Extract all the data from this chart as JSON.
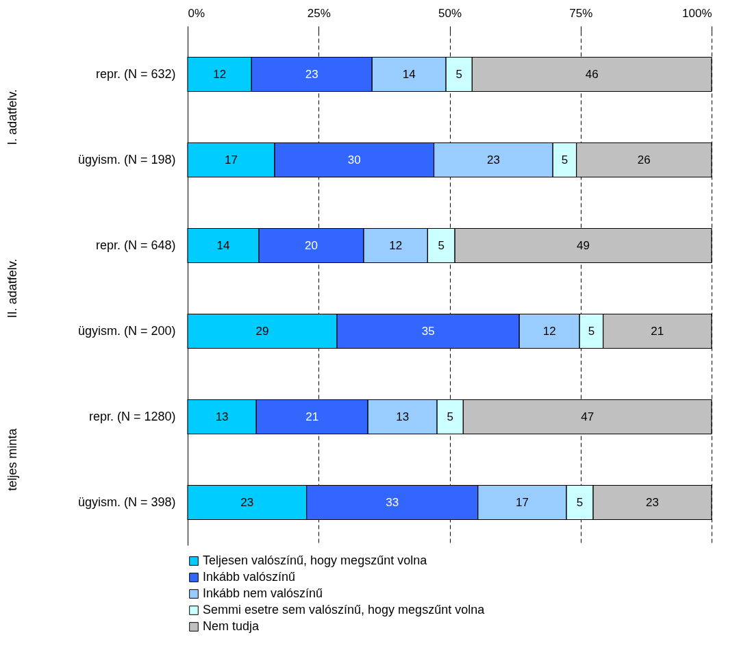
{
  "chart_data": {
    "type": "bar",
    "orientation": "horizontal",
    "stacked": true,
    "categories": [
      "repr. (N = 632)",
      "ügyism. (N = 198)",
      "repr. (N = 648)",
      "ügyism. (N = 200)",
      "repr. (N = 1280)",
      "ügyism. (N = 398)"
    ],
    "series": [
      {
        "name": "Teljesen valószínű, hogy megszűnt volna",
        "color": "#00ccff",
        "values": [
          12.2,
          16.6,
          13.6,
          28.5,
          13.1,
          22.7
        ],
        "value_labels": [
          "12",
          "17",
          "14",
          "29",
          "13",
          "23"
        ]
      },
      {
        "name": "Inkább valószínű",
        "color": "#3366ff",
        "values": [
          23.0,
          30.4,
          20.0,
          34.8,
          21.3,
          32.7
        ],
        "value_labels": [
          "23",
          "30",
          "20",
          "35",
          "21",
          "33"
        ]
      },
      {
        "name": "Inkább nem valószínű",
        "color": "#99ccff",
        "values": [
          14.1,
          22.7,
          12.2,
          11.5,
          13.2,
          16.9
        ],
        "value_labels": [
          "14",
          "23",
          "12",
          "12",
          "13",
          "17"
        ]
      },
      {
        "name": "Semmi esetre sem valószínű, hogy megszűnt volna",
        "color": "#ccffff",
        "values": [
          5.0,
          4.5,
          5.2,
          4.5,
          5.0,
          5.1
        ],
        "value_labels": [
          "5",
          "5",
          "5",
          "5",
          "5",
          "5"
        ]
      },
      {
        "name": "Nem tudja",
        "color": "#c0c0c0",
        "values": [
          45.7,
          25.8,
          49.0,
          20.7,
          47.4,
          22.6
        ],
        "value_labels": [
          "46",
          "26",
          "49",
          "21",
          "47",
          "23"
        ]
      }
    ],
    "xlim": [
      0,
      100
    ],
    "xticks": [
      {
        "value": 0,
        "label": "0%"
      },
      {
        "value": 25,
        "label": "25%"
      },
      {
        "value": 50,
        "label": "50%"
      },
      {
        "value": 75,
        "label": "75%"
      },
      {
        "value": 100,
        "label": "100%"
      }
    ],
    "grid": "x",
    "legend": "bottom",
    "annotations": [
      "I. adatfelv.",
      "II. adatfelv.",
      "teljes minta"
    ]
  }
}
